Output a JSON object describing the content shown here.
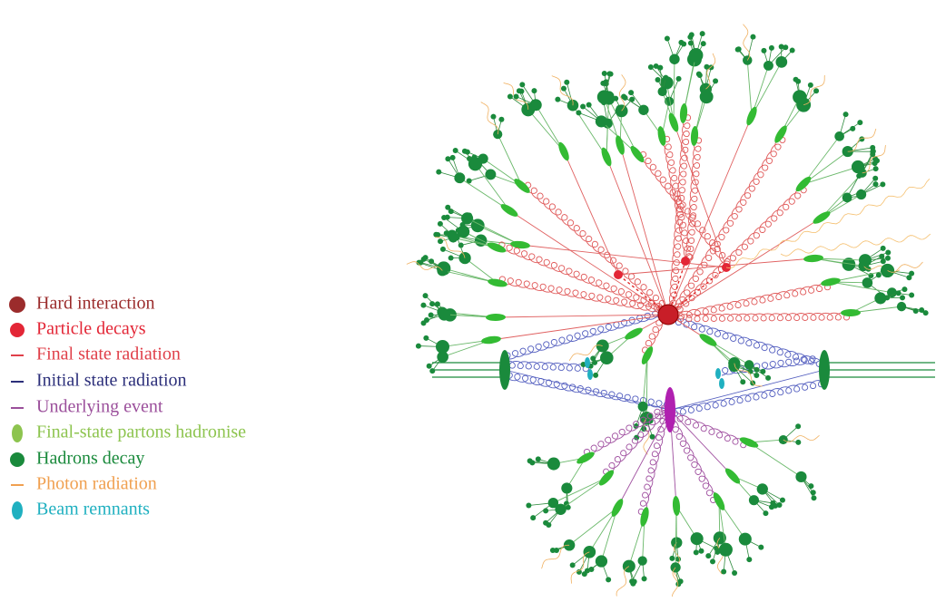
{
  "legend": {
    "items": [
      {
        "label": "Hard interaction"
      },
      {
        "label": "Particle decays"
      },
      {
        "label": "Final state radiation"
      },
      {
        "label": "Initial state radiation"
      },
      {
        "label": "Underlying event"
      },
      {
        "label": "Final-state partons hadronise"
      },
      {
        "label": "Hadrons decay"
      },
      {
        "label": "Photon radiation"
      },
      {
        "label": "Beam remnants"
      }
    ]
  }
}
